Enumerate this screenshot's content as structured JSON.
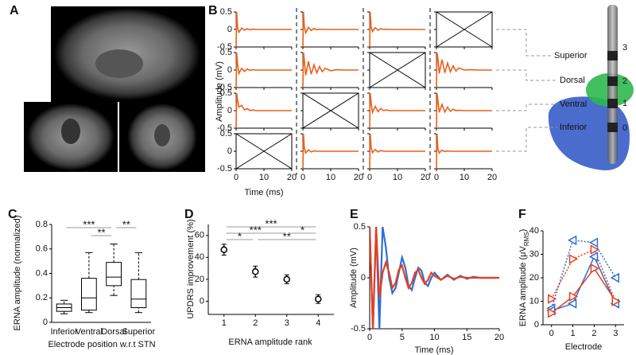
{
  "panel_labels": [
    "A",
    "B",
    "C",
    "D",
    "E",
    "F"
  ],
  "diagram": {
    "regions": [
      "Superior",
      "Dorsal",
      "Ventral",
      "Inferior"
    ],
    "contacts": [
      "3",
      "2",
      "1",
      "0"
    ]
  },
  "chart_data": [
    {
      "type": "waveform-grid",
      "ylabel": "Amplitude (mV)",
      "xlabel": "Time (ms)",
      "color": "#e8601c",
      "xlim": [
        0,
        20
      ],
      "ylim": [
        -0.5,
        0.5
      ],
      "xticks": [
        0,
        10,
        20
      ],
      "yticks": [
        0.5,
        0,
        -0.5
      ],
      "x": [
        0,
        0.2,
        0.5,
        1,
        2,
        3,
        4,
        5,
        6,
        7,
        8,
        10,
        12,
        15,
        20
      ],
      "cells": [
        [
          [
            -0.5,
            0.5,
            0.05,
            -0.08,
            0.04,
            -0.02,
            0.02,
            -0.01,
            0.01,
            0,
            0,
            0,
            0,
            0,
            0
          ],
          [
            -0.5,
            0.5,
            0.1,
            -0.1,
            0.06,
            -0.03,
            0.03,
            -0.01,
            0.01,
            0,
            0,
            0,
            0,
            0,
            0
          ],
          [
            -0.5,
            0.5,
            0.08,
            -0.06,
            0.05,
            -0.02,
            0.02,
            0,
            0.01,
            0,
            0,
            0,
            0,
            0,
            0
          ],
          null
        ],
        [
          [
            -0.5,
            0.5,
            0.2,
            -0.1,
            0.05,
            -0.04,
            0.03,
            -0.01,
            0.01,
            0,
            0,
            0,
            0,
            0,
            0
          ],
          [
            -0.5,
            0.5,
            0.3,
            -0.15,
            0.25,
            -0.12,
            0.15,
            -0.08,
            0.1,
            -0.05,
            0.05,
            -0.02,
            0.01,
            0,
            0
          ],
          null,
          [
            -0.5,
            0.5,
            0.35,
            -0.1,
            0.3,
            -0.08,
            0.2,
            -0.05,
            0.12,
            -0.03,
            0.06,
            0,
            0.01,
            0,
            0
          ]
        ],
        [
          [
            -0.5,
            0.5,
            0.3,
            0.1,
            0.15,
            0.02,
            0.06,
            0,
            0.02,
            0,
            0,
            0,
            0,
            0,
            0
          ],
          null,
          [
            -0.5,
            0.5,
            0.25,
            -0.05,
            0.12,
            -0.03,
            0.06,
            0,
            0.02,
            0,
            0,
            0,
            0,
            0,
            0
          ],
          [
            -0.5,
            0.5,
            0.3,
            -0.05,
            0.18,
            -0.04,
            0.1,
            -0.02,
            0.04,
            0,
            0.01,
            0,
            0,
            0,
            0
          ]
        ],
        [
          null,
          [
            -0.5,
            0.5,
            0.1,
            -0.05,
            0.04,
            -0.02,
            0.01,
            0,
            0,
            0,
            0,
            0,
            0,
            0,
            0
          ],
          [
            -0.5,
            0.5,
            0.12,
            -0.04,
            0.05,
            -0.02,
            0.02,
            0,
            0,
            0,
            0,
            0,
            0,
            0,
            0
          ],
          [
            -0.5,
            0.5,
            0.08,
            -0.05,
            0.03,
            -0.01,
            0.01,
            0,
            0,
            0,
            0,
            0,
            0,
            0,
            0
          ]
        ]
      ]
    },
    {
      "type": "box",
      "ylabel": "ERNA amplitude (normalized)",
      "xlabel": "Electrode position w.r.t STN",
      "categories": [
        "Inferior",
        "Ventral",
        "Dorsal",
        "Superior"
      ],
      "min": [
        0.07,
        0.08,
        0.22,
        0.08
      ],
      "q1": [
        0.09,
        0.1,
        0.3,
        0.12
      ],
      "median": [
        0.12,
        0.2,
        0.37,
        0.19
      ],
      "q3": [
        0.15,
        0.36,
        0.49,
        0.35
      ],
      "max": [
        0.18,
        0.57,
        0.64,
        0.57
      ],
      "ylim": [
        0,
        0.8
      ],
      "yticks": [
        0,
        0.2,
        0.4,
        0.6,
        0.8
      ],
      "comparisons": [
        {
          "from": 0,
          "to": 2,
          "label": "***"
        },
        {
          "from": 1,
          "to": 2,
          "label": "**"
        },
        {
          "from": 2,
          "to": 3,
          "label": "**"
        }
      ]
    },
    {
      "type": "errorbar",
      "ylabel": "UPDRS improvement (%)",
      "xlabel": "ERNA amplitude rank",
      "x": [
        1,
        2,
        3,
        4
      ],
      "values": [
        47,
        27,
        20,
        2
      ],
      "errors": [
        5,
        5,
        4,
        4
      ],
      "xlim": [
        0.5,
        4.5
      ],
      "ylim": [
        -12,
        70
      ],
      "xticks": [
        1,
        2,
        3,
        4
      ],
      "yticks": [
        0,
        20,
        40,
        60
      ],
      "comparisons": [
        {
          "from": 0,
          "to": 3,
          "label": "***"
        },
        {
          "from": 0,
          "to": 2,
          "label": "***"
        },
        {
          "from": 0,
          "to": 1,
          "label": "*"
        },
        {
          "from": 1,
          "to": 3,
          "label": "**"
        },
        {
          "from": 2,
          "to": 3,
          "label": "*"
        }
      ]
    },
    {
      "type": "line",
      "ylabel": "Amplitude (mV)",
      "xlabel": "Time (ms)",
      "x": [
        0,
        0.5,
        1,
        1.5,
        2,
        2.5,
        3,
        3.5,
        4,
        4.5,
        5,
        5.5,
        6,
        6.5,
        7,
        7.5,
        8,
        8.5,
        9,
        9.5,
        10,
        11,
        12,
        13,
        14,
        15,
        16,
        17,
        18,
        19,
        20
      ],
      "series": [
        {
          "color": "#2a6fdb",
          "values": [
            0.5,
            -0.5,
            0.5,
            -0.5,
            0.5,
            0.3,
            0.0,
            -0.15,
            -0.1,
            0.05,
            0.2,
            0.1,
            -0.08,
            -0.12,
            0,
            0.1,
            0.07,
            -0.05,
            -0.08,
            0,
            0.05,
            -0.02,
            0.03,
            -0.02,
            0.02,
            -0.01,
            0.01,
            0,
            0,
            0,
            0
          ]
        },
        {
          "color": "#e8401c",
          "values": [
            0.5,
            -0.5,
            0.5,
            -0.2,
            0.05,
            0.15,
            0.05,
            -0.1,
            -0.05,
            0.08,
            0.12,
            0,
            -0.1,
            -0.05,
            0.05,
            0.08,
            0,
            -0.06,
            -0.02,
            0.05,
            0.02,
            -0.02,
            0.02,
            -0.01,
            0.01,
            0,
            0,
            0,
            0,
            0,
            0
          ]
        }
      ],
      "xlim": [
        0,
        20
      ],
      "ylim": [
        -0.5,
        0.5
      ],
      "xticks": [
        0,
        5,
        10,
        15,
        20
      ],
      "yticks": [
        -0.5,
        0,
        0.5
      ]
    },
    {
      "type": "marker-line",
      "ylabel": [
        "ERNA amplitude (μV",
        "RMS",
        ")"
      ],
      "xlabel": "Electrode",
      "x": [
        0,
        1,
        2,
        3
      ],
      "series": [
        {
          "color": "#2a6fdb",
          "style": "dotted",
          "marker": "triangle-left",
          "values": [
            7,
            36,
            35,
            20
          ]
        },
        {
          "color": "#e8401c",
          "style": "dotted",
          "marker": "triangle-right",
          "values": [
            11,
            28,
            32,
            10
          ]
        },
        {
          "color": "#2a6fdb",
          "style": "solid",
          "marker": "triangle-left",
          "values": [
            6,
            9,
            29,
            9
          ]
        },
        {
          "color": "#e8401c",
          "style": "solid",
          "marker": "triangle-right",
          "values": [
            5,
            12,
            24,
            10
          ]
        }
      ],
      "xlim": [
        -0.4,
        3.4
      ],
      "ylim": [
        0,
        40
      ],
      "xticks": [
        0,
        1,
        2,
        3
      ],
      "yticks": [
        0,
        10,
        20,
        30,
        40
      ]
    }
  ]
}
